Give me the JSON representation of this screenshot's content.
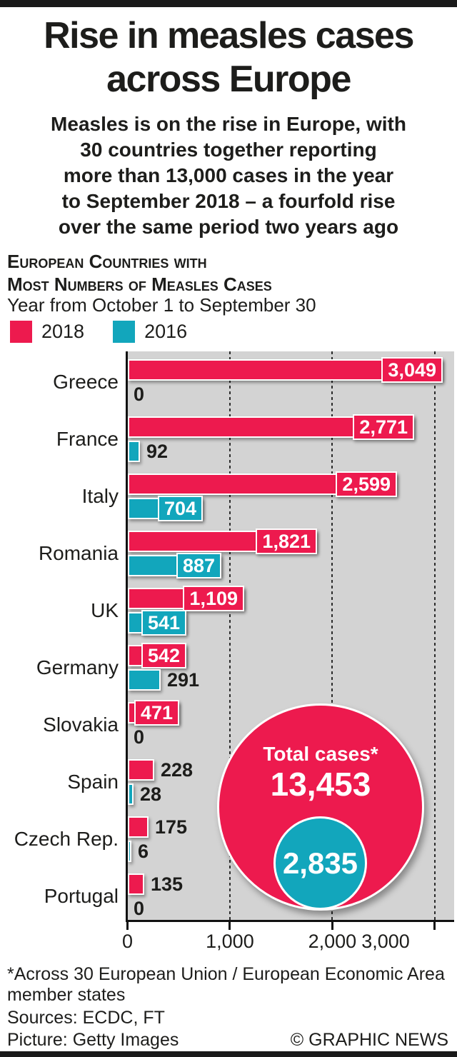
{
  "header": {
    "title_line1": "Rise in measles cases",
    "title_line2": "across Europe",
    "intro_lines": [
      "Measles is on the rise in Europe, with",
      "30 countries together reporting",
      "more than 13,000 cases in the year",
      "to September 2018 – a fourfold rise",
      "over the same period two years ago"
    ]
  },
  "chart_header": {
    "kicker_line1": "European Countries with",
    "kicker_line2": "Most Numbers of Measles Cases",
    "subtitle": "Year from October 1 to September 30"
  },
  "chart_data": {
    "type": "bar",
    "orientation": "horizontal",
    "title": "European countries with most numbers of measles cases",
    "categories": [
      "Greece",
      "France",
      "Italy",
      "Romania",
      "UK",
      "Germany",
      "Slovakia",
      "Spain",
      "Czech Rep.",
      "Portugal"
    ],
    "series": [
      {
        "name": "2018",
        "color": "#ed1a4e",
        "values": [
          3049,
          2771,
          2599,
          1821,
          1109,
          542,
          471,
          228,
          175,
          135
        ]
      },
      {
        "name": "2016",
        "color": "#12a6bc",
        "values": [
          0,
          92,
          704,
          887,
          541,
          291,
          0,
          28,
          6,
          0
        ]
      }
    ],
    "x_ticks": [
      0,
      1000,
      2000,
      3000
    ],
    "x_tick_labels": [
      "0",
      "1,000",
      "2,000",
      "3,000"
    ],
    "xlim": [
      0,
      3186
    ],
    "grid": "dashed-vertical",
    "plot_background": "#d3d3d3",
    "legend_position": "top-left",
    "annotation": {
      "total_label": "Total cases*",
      "total_2018": "13,453",
      "total_2016": "2,835"
    }
  },
  "footer": {
    "footnote_line1": "*Across 30 European Union / European Economic Area",
    "footnote_line2": "member states",
    "sources": "Sources: ECDC, FT",
    "picture": "Picture: Getty Images",
    "copyright": "© GRAPHIC NEWS"
  }
}
